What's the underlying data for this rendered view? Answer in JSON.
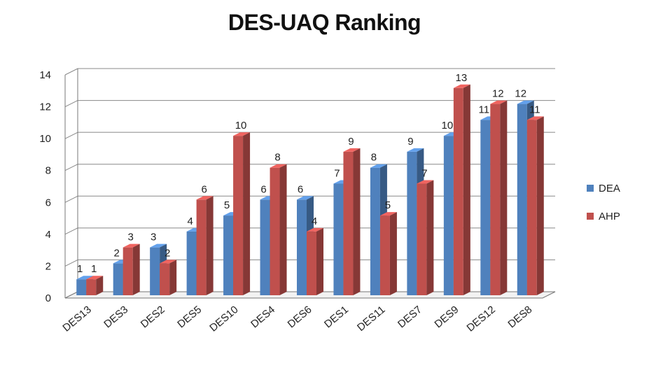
{
  "chart_data": {
    "type": "bar",
    "title": "DES-UAQ Ranking",
    "xlabel": "",
    "ylabel": "",
    "ylim": [
      0,
      14
    ],
    "yticks": [
      0,
      2,
      4,
      6,
      8,
      10,
      12,
      14
    ],
    "grid": true,
    "legend_position": "right",
    "categories": [
      "DES13",
      "DES3",
      "DES2",
      "DES5",
      "DES10",
      "DES4",
      "DES6",
      "DES1",
      "DES11",
      "DES7",
      "DES9",
      "DES12",
      "DES8"
    ],
    "series": [
      {
        "name": "DEA",
        "color": "#4f81bd",
        "values": [
          1,
          2,
          3,
          4,
          5,
          6,
          6,
          7,
          8,
          9,
          10,
          11,
          12
        ]
      },
      {
        "name": "AHP",
        "color": "#c0504d",
        "values": [
          1,
          3,
          2,
          6,
          10,
          8,
          4,
          9,
          5,
          7,
          13,
          12,
          11
        ]
      }
    ]
  }
}
